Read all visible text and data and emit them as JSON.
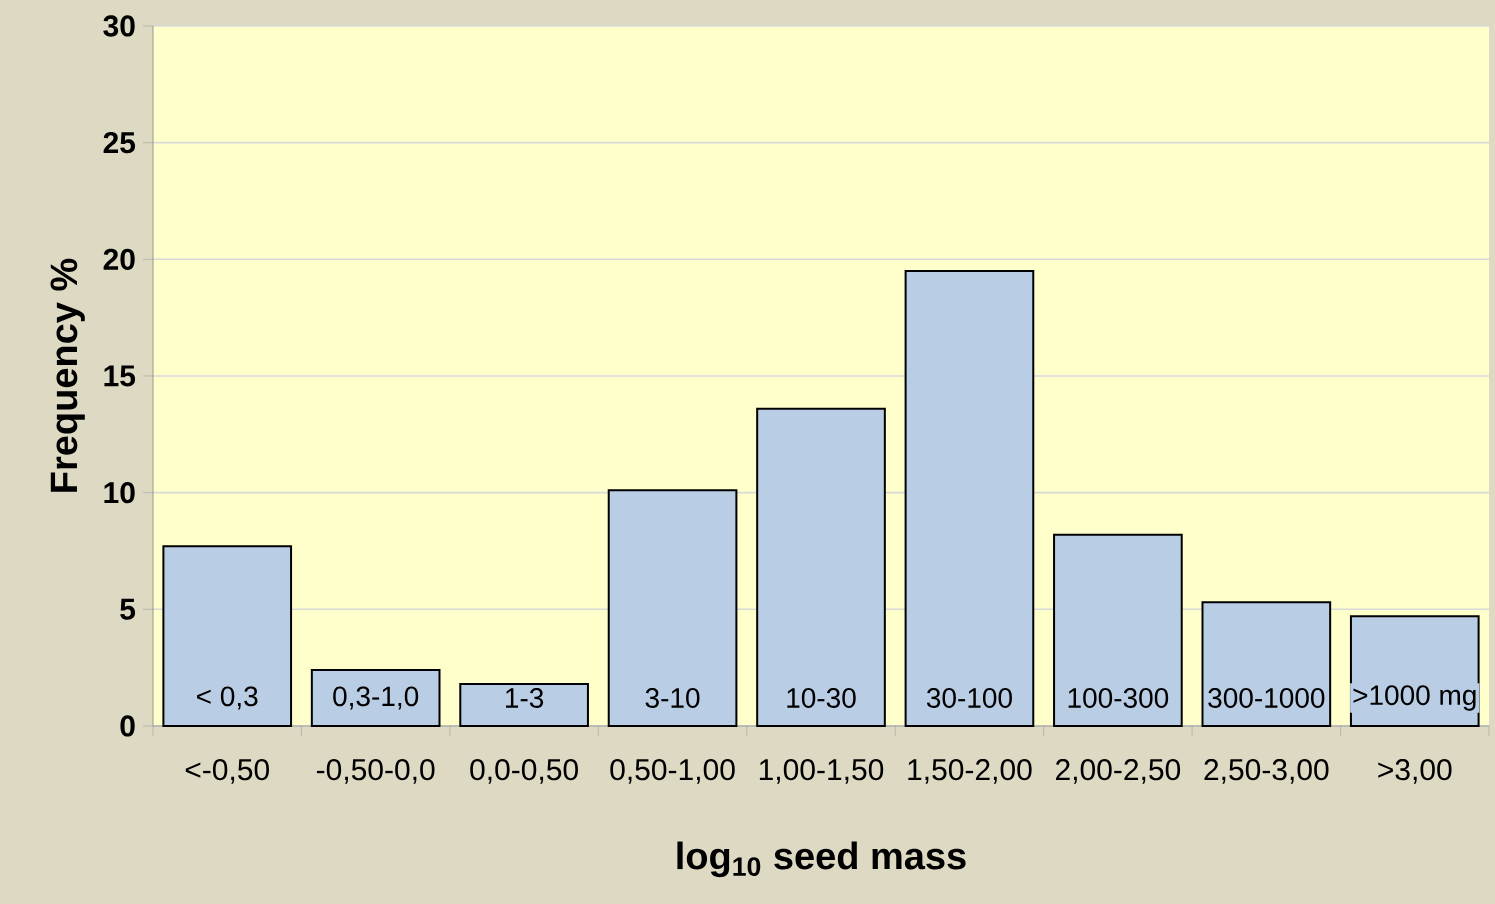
{
  "chart_data": {
    "type": "bar",
    "xlabel": "log$_{10}$ seed mass",
    "ylabel": "Frequency %",
    "categories": [
      "<-0,50",
      "-0,50-0,0",
      "0,0-0,50",
      "0,50-1,00",
      "1,00-1,50",
      "1,50-2,00",
      "2,00-2,50",
      "2,50-3,00",
      ">3,00"
    ],
    "values": [
      7.7,
      2.4,
      1.8,
      10.1,
      13.6,
      19.5,
      8.2,
      5.3,
      4.7
    ],
    "color": "#b9cde5",
    "ylim": [
      0,
      30
    ],
    "yticks": [
      0,
      5,
      10,
      15,
      20,
      25,
      30
    ],
    "grid": "y",
    "annotations": [
      "< 0,3",
      "0,3-1,0",
      "1-3",
      "3-10",
      "10-30",
      "30-100",
      "100-300",
      "300-1000",
      ">1000 mg"
    ]
  }
}
